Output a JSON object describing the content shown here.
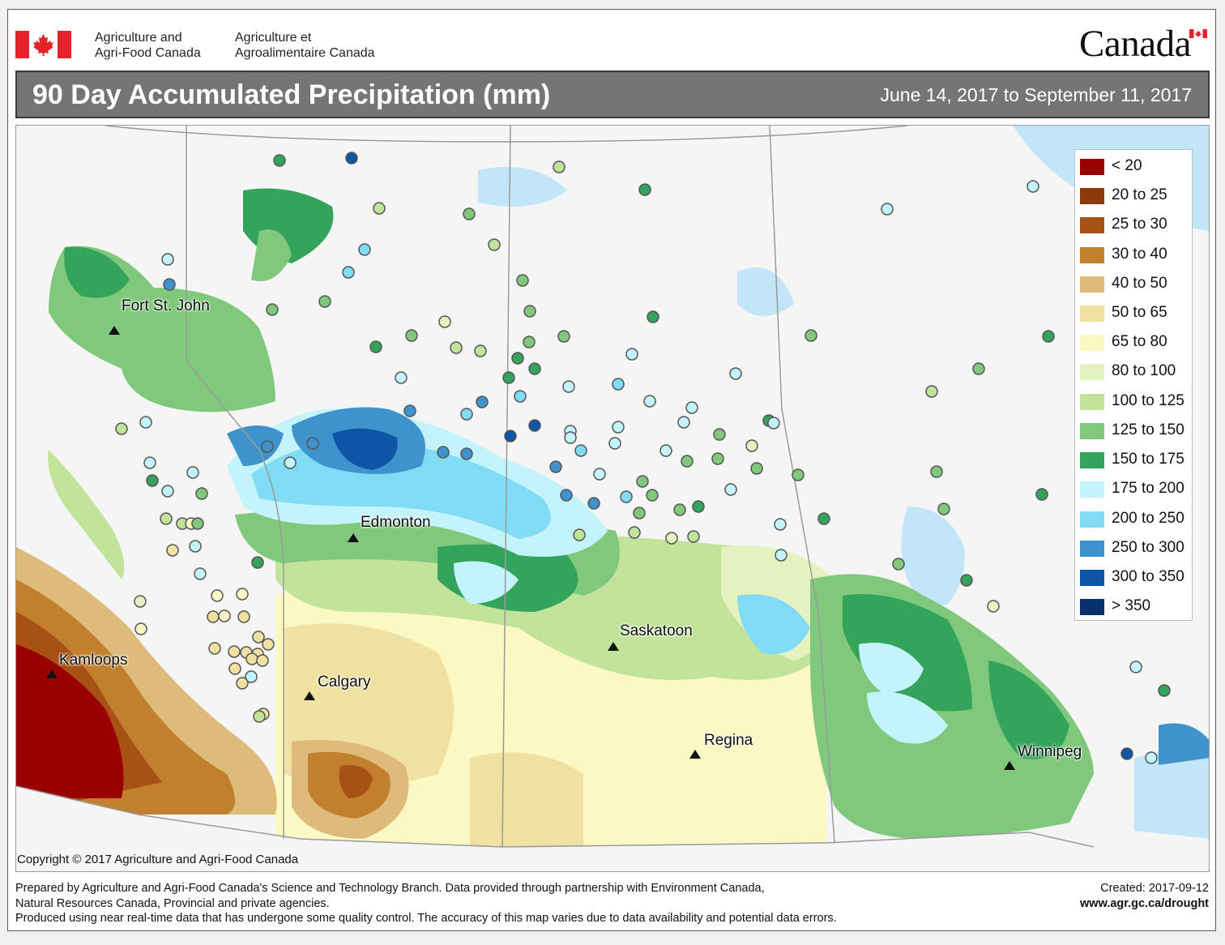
{
  "header": {
    "dept_en_line1": "Agriculture and",
    "dept_en_line2": "Agri-Food Canada",
    "dept_fr_line1": "Agriculture et",
    "dept_fr_line2": "Agroalimentaire Canada",
    "wordmark": "Canada"
  },
  "title": {
    "main": "90 Day Accumulated Precipitation (mm)",
    "date_range": "June 14, 2017 to September 11, 2017"
  },
  "legend": {
    "items": [
      {
        "label": "< 20",
        "color": "#9b0000"
      },
      {
        "label": "20 to 25",
        "color": "#8c3a0c"
      },
      {
        "label": "25 to 30",
        "color": "#a85116"
      },
      {
        "label": "30 to 40",
        "color": "#c2802e"
      },
      {
        "label": "40 to 50",
        "color": "#ddbb7a"
      },
      {
        "label": "50 to 65",
        "color": "#f0e1a2"
      },
      {
        "label": "65 to 80",
        "color": "#fbf8c4"
      },
      {
        "label": "80 to 100",
        "color": "#e4f2bf"
      },
      {
        "label": "100 to 125",
        "color": "#c2e49a"
      },
      {
        "label": "125 to 150",
        "color": "#80c87c"
      },
      {
        "label": "150 to 175",
        "color": "#34a35c"
      },
      {
        "label": "175 to 200",
        "color": "#c4f4fb"
      },
      {
        "label": "200 to 250",
        "color": "#7fdcf4"
      },
      {
        "label": "250 to 300",
        "color": "#3f93cd"
      },
      {
        "label": "300 to 350",
        "color": "#0d56a6"
      },
      {
        "label": "> 350",
        "color": "#08306b"
      }
    ]
  },
  "cities": [
    {
      "name": "Fort St. John"
    },
    {
      "name": "Edmonton"
    },
    {
      "name": "Kamloops"
    },
    {
      "name": "Calgary"
    },
    {
      "name": "Saskatoon"
    },
    {
      "name": "Regina"
    },
    {
      "name": "Winnipeg"
    }
  ],
  "copyright": "Copyright © 2017 Agriculture and Agri-Food Canada",
  "footer": {
    "line1": "Prepared by Agriculture and Agri-Food Canada's Science and Technology Branch. Data provided through partnership with Environment Canada,",
    "line2": "Natural Resources Canada, Provincial and private agencies.",
    "line3": "Produced using near real-time data that has undergone some quality control. The accuracy of this map varies due to data availability and potential data errors.",
    "created": "Created: 2017-09-12",
    "url": "www.agr.gc.ca/drought"
  },
  "colors": {
    "water": "#c2e6f7",
    "land_outside": "#f5f5f5",
    "boundary": "#9a9a9a",
    "title_bar": "#757575",
    "flag_red": "#e4222a"
  }
}
